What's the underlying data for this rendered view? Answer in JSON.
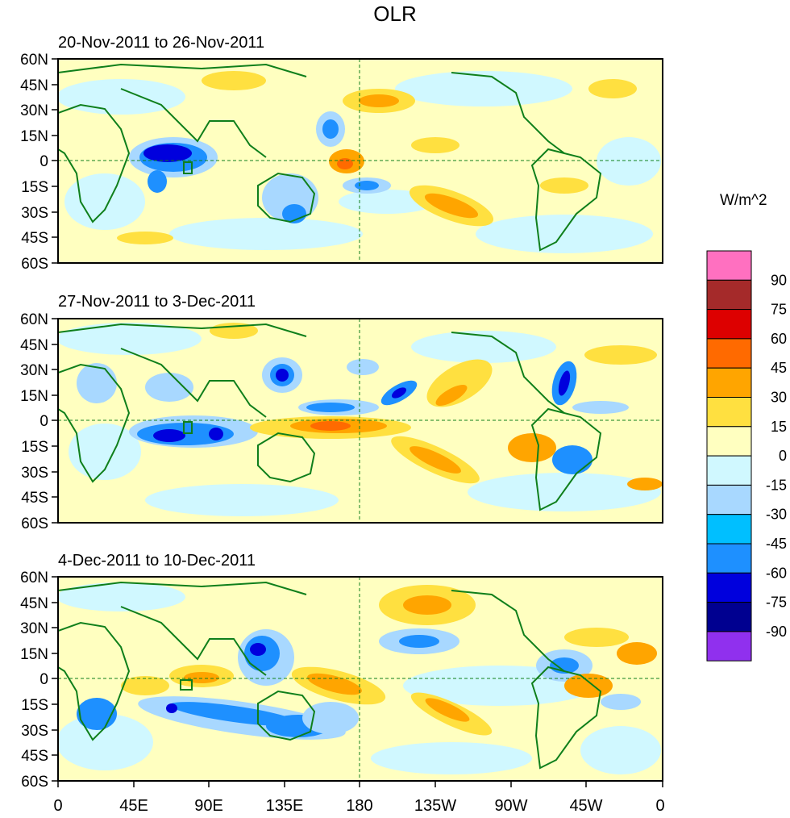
{
  "title": "OLR",
  "units": "W/m^2",
  "colors": {
    "coastline": "#0f7f1b",
    "dashed_line": "#0f7f1b"
  },
  "lat_labels": [
    "60N",
    "45N",
    "30N",
    "15N",
    "0",
    "15S",
    "30S",
    "45S",
    "60S"
  ],
  "lon_labels": [
    "0",
    "45E",
    "90E",
    "135E",
    "180",
    "135W",
    "90W",
    "45W",
    "0"
  ],
  "panels": [
    {
      "title": "20-Nov-2011 to 26-Nov-2011"
    },
    {
      "title": "27-Nov-2011 to 3-Dec-2011"
    },
    {
      "title": "4-Dec-2011 to 10-Dec-2011"
    }
  ],
  "colorbar": {
    "colors": [
      "#ff70c0",
      "#a52a2a",
      "#dd0000",
      "#ff6a00",
      "#ffa500",
      "#ffe040",
      "#ffffc0",
      "#d0f8ff",
      "#a8d8ff",
      "#00bfff",
      "#1e90ff",
      "#0000dd",
      "#000090",
      "#9030ee"
    ],
    "labels": [
      "90",
      "75",
      "60",
      "45",
      "30",
      "15",
      "0",
      "-15",
      "-30",
      "-45",
      "-60",
      "-75",
      "-90"
    ]
  }
}
